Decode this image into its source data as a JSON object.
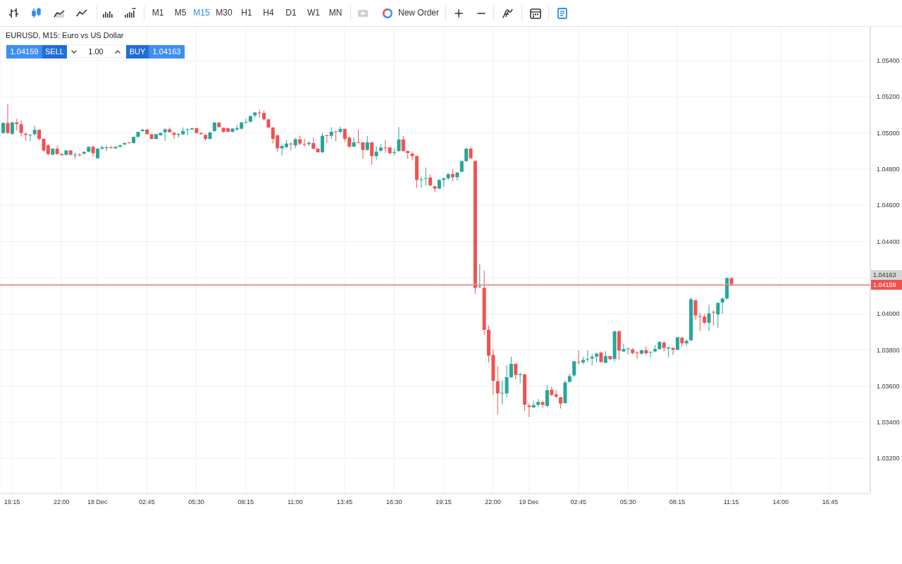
{
  "chart_data": {
    "type": "candlestick",
    "title": "EURUSD, M15: Euro vs US Dollar",
    "annotations": [
      "M1",
      "M5",
      "M15",
      "M30",
      "H1",
      "H4",
      "D1",
      "W1",
      "MN",
      "New Order",
      "1.04159",
      "SELL",
      "1.00",
      "BUY",
      "1.04163"
    ],
    "x": [
      "--12-17T18:45",
      "--12-17T19:00",
      "--12-17T19:15",
      "--12-17T19:30",
      "--12-17T19:45",
      "--12-17T20:00",
      "--12-17T20:15",
      "--12-17T20:30",
      "--12-17T20:45",
      "--12-17T21:00",
      "--12-17T21:15",
      "--12-17T21:30",
      "--12-17T21:45",
      "--12-17T22:00",
      "--12-17T22:15",
      "--12-17T22:30",
      "--12-17T22:45",
      "--12-17T23:00",
      "--12-17T23:15",
      "--12-17T23:30",
      "--12-17T23:45",
      "--12-18T00:00",
      "--12-18T00:15",
      "--12-18T00:30",
      "--12-18T00:45",
      "--12-18T01:00",
      "--12-18T01:15",
      "--12-18T01:30",
      "--12-18T01:45",
      "--12-18T02:00",
      "--12-18T02:15",
      "--12-18T02:30",
      "--12-18T02:45",
      "--12-18T03:00",
      "--12-18T03:15",
      "--12-18T03:30",
      "--12-18T03:45",
      "--12-18T04:00",
      "--12-18T04:15",
      "--12-18T04:30",
      "--12-18T04:45",
      "--12-18T05:00",
      "--12-18T05:15",
      "--12-18T05:30",
      "--12-18T05:45",
      "--12-18T06:00",
      "--12-18T06:15",
      "--12-18T06:30",
      "--12-18T06:45",
      "--12-18T07:00",
      "--12-18T07:15",
      "--12-18T07:30",
      "--12-18T07:45",
      "--12-18T08:00",
      "--12-18T08:15",
      "--12-18T08:30",
      "--12-18T08:45",
      "--12-18T09:00",
      "--12-18T09:15",
      "--12-18T09:30",
      "--12-18T09:45",
      "--12-18T10:00",
      "--12-18T10:15",
      "--12-18T10:30",
      "--12-18T10:45",
      "--12-18T11:00",
      "--12-18T11:15",
      "--12-18T11:30",
      "--12-18T11:45",
      "--12-18T12:00",
      "--12-18T12:15",
      "--12-18T12:30",
      "--12-18T12:45",
      "--12-18T13:00",
      "--12-18T13:15",
      "--12-18T13:30",
      "--12-18T13:45",
      "--12-18T14:00",
      "--12-18T14:15",
      "--12-18T14:30",
      "--12-18T14:45",
      "--12-18T15:00",
      "--12-18T15:15",
      "--12-18T15:30",
      "--12-18T15:45",
      "--12-18T16:00",
      "--12-18T16:15",
      "--12-18T16:30",
      "--12-18T16:45",
      "--12-18T17:00",
      "--12-18T17:15",
      "--12-18T17:30",
      "--12-18T17:45",
      "--12-18T18:00",
      "--12-18T18:15",
      "--12-18T18:30",
      "--12-18T18:45",
      "--12-18T19:00",
      "--12-18T19:15",
      "--12-18T19:30",
      "--12-18T19:45",
      "--12-18T20:00",
      "--12-18T20:15",
      "--12-18T20:30",
      "--12-18T20:45",
      "--12-18T21:00",
      "--12-18T21:15",
      "--12-18T21:30",
      "--12-18T21:45",
      "--12-18T22:00",
      "--12-18T22:15",
      "--12-18T22:30",
      "--12-18T22:45",
      "--12-18T23:00",
      "--12-18T23:15",
      "--12-18T23:30",
      "--12-18T23:45",
      "--12-19T00:00",
      "--12-19T00:15",
      "--12-19T00:30",
      "--12-19T00:45",
      "--12-19T01:00",
      "--12-19T01:15",
      "--12-19T01:30",
      "--12-19T01:45",
      "--12-19T02:00",
      "--12-19T02:15",
      "--12-19T02:30",
      "--12-19T02:45",
      "--12-19T03:00",
      "--12-19T03:15",
      "--12-19T03:30",
      "--12-19T03:45",
      "--12-19T04:00",
      "--12-19T04:15",
      "--12-19T04:30",
      "--12-19T04:45",
      "--12-19T05:00",
      "--12-19T05:15",
      "--12-19T05:30",
      "--12-19T05:45",
      "--12-19T06:00",
      "--12-19T06:15",
      "--12-19T06:30",
      "--12-19T06:45",
      "--12-19T07:00",
      "--12-19T07:15",
      "--12-19T07:30",
      "--12-19T07:45",
      "--12-19T08:00",
      "--12-19T08:15",
      "--12-19T08:30",
      "--12-19T08:45",
      "--12-19T09:00",
      "--12-19T09:15",
      "--12-19T09:30",
      "--12-19T09:45",
      "--12-19T10:00",
      "--12-19T10:15",
      "--12-19T10:30",
      "--12-19T10:45",
      "--12-19T11:00",
      "--12-19T11:15"
    ],
    "ohlc": [
      [
        1.05,
        1.05058,
        1.04995,
        1.05055
      ],
      [
        1.05055,
        1.0516,
        1.04993,
        1.05
      ],
      [
        1.04995,
        1.05062,
        1.0499,
        1.05058
      ],
      [
        1.05058,
        1.05078,
        1.05014,
        1.05049
      ],
      [
        1.05048,
        1.0507,
        1.0498,
        1.05
      ],
      [
        1.04995,
        1.05003,
        1.04957,
        1.04989
      ],
      [
        1.04988,
        1.04993,
        1.04954,
        1.0499
      ],
      [
        1.04993,
        1.05039,
        1.04987,
        1.05017
      ],
      [
        1.05017,
        1.0502,
        1.04957,
        1.04967
      ],
      [
        1.04967,
        1.0497,
        1.04896,
        1.04903
      ],
      [
        1.04931,
        1.0494,
        1.04876,
        1.04883
      ],
      [
        1.0488,
        1.04915,
        1.04876,
        1.04913
      ],
      [
        1.04913,
        1.0493,
        1.0488,
        1.04883
      ],
      [
        1.04883,
        1.04888,
        1.04876,
        1.04877
      ],
      [
        1.04879,
        1.04905,
        1.04876,
        1.04903
      ],
      [
        1.04903,
        1.04905,
        1.04876,
        1.04879
      ],
      [
        1.04878,
        1.04891,
        1.04857,
        1.0488
      ],
      [
        1.0488,
        1.04889,
        1.0487,
        1.04877
      ],
      [
        1.04885,
        1.04898,
        1.04883,
        1.04895
      ],
      [
        1.04896,
        1.04925,
        1.04893,
        1.04923
      ],
      [
        1.04923,
        1.0493,
        1.0487,
        1.04888
      ],
      [
        1.0486,
        1.04915,
        1.04857,
        1.04913
      ],
      [
        1.04913,
        1.04931,
        1.04908,
        1.0492
      ],
      [
        1.04918,
        1.04929,
        1.049,
        1.0492
      ],
      [
        1.0492,
        1.04929,
        1.04913,
        1.04918
      ],
      [
        1.04915,
        1.04926,
        1.0491,
        1.04923
      ],
      [
        1.04923,
        1.04934,
        1.0492,
        1.04931
      ],
      [
        1.04936,
        1.04946,
        1.04934,
        1.04944
      ],
      [
        1.04947,
        1.0495,
        1.04942,
        1.04944
      ],
      [
        1.04944,
        1.0498,
        1.04942,
        1.04978
      ],
      [
        1.04978,
        1.05008,
        1.04975,
        1.05006
      ],
      [
        1.0501,
        1.05022,
        1.05006,
        1.05018
      ],
      [
        1.05018,
        1.05023,
        1.0499,
        1.04993
      ],
      [
        1.04993,
        1.04996,
        1.04965,
        1.04967
      ],
      [
        1.04967,
        1.04996,
        1.04964,
        1.04993
      ],
      [
        1.04987,
        1.05003,
        1.04985,
        1.05
      ],
      [
        1.05004,
        1.05026,
        1.04957,
        1.0502
      ],
      [
        1.0502,
        1.0503,
        1.05002,
        1.05004
      ],
      [
        1.05,
        1.05006,
        1.04967,
        1.04989
      ],
      [
        1.04989,
        1.05,
        1.04974,
        1.04994
      ],
      [
        1.04993,
        1.0503,
        1.04987,
        1.0501
      ],
      [
        1.05016,
        1.05026,
        1.04987,
        1.0502
      ],
      [
        1.0502,
        1.0503,
        1.05016,
        1.05026
      ],
      [
        1.05026,
        1.05029,
        1.04997,
        1.05
      ],
      [
        1.05,
        1.05003,
        1.0499,
        1.04993
      ],
      [
        1.04989,
        1.04994,
        1.04957,
        1.04967
      ],
      [
        1.04967,
        1.05006,
        1.04964,
        1.05003
      ],
      [
        1.0501,
        1.0506,
        1.05008,
        1.05057
      ],
      [
        1.05057,
        1.0506,
        1.0503,
        1.05032
      ],
      [
        1.05028,
        1.0503,
        1.05,
        1.05006
      ],
      [
        1.05026,
        1.0503,
        1.05004,
        1.05006
      ],
      [
        1.05006,
        1.05026,
        1.05004,
        1.05024
      ],
      [
        1.05019,
        1.05045,
        1.05013,
        1.05026
      ],
      [
        1.05023,
        1.0506,
        1.0502,
        1.05058
      ],
      [
        1.05057,
        1.05078,
        1.05052,
        1.0506
      ],
      [
        1.05062,
        1.05097,
        1.05058,
        1.05093
      ],
      [
        1.05097,
        1.05117,
        1.05084,
        1.05113
      ],
      [
        1.05113,
        1.0513,
        1.05084,
        1.0511
      ],
      [
        1.0511,
        1.05123,
        1.05072,
        1.05075
      ],
      [
        1.05075,
        1.05078,
        1.05028,
        1.0503
      ],
      [
        1.0503,
        1.05032,
        1.04941,
        1.04967
      ],
      [
        1.04987,
        1.0499,
        1.04896,
        1.04915
      ],
      [
        1.04915,
        1.04935,
        1.04876,
        1.04928
      ],
      [
        1.04922,
        1.04961,
        1.04915,
        1.04941
      ],
      [
        1.04941,
        1.04948,
        1.04902,
        1.04939
      ],
      [
        1.04931,
        1.04974,
        1.04915,
        1.04965
      ],
      [
        1.04965,
        1.04983,
        1.04931,
        1.04941
      ],
      [
        1.04939,
        1.0497,
        1.04922,
        1.04937
      ],
      [
        1.04938,
        1.04954,
        1.04928,
        1.04945
      ],
      [
        1.04944,
        1.04974,
        1.04909,
        1.04913
      ],
      [
        1.04913,
        1.04915,
        1.04891,
        1.04893
      ],
      [
        1.04893,
        1.05,
        1.04889,
        1.04984
      ],
      [
        1.04987,
        1.04991,
        1.04944,
        1.04985
      ],
      [
        1.04984,
        1.05032,
        1.04967,
        1.05006
      ],
      [
        1.05009,
        1.0501,
        1.04954,
        1.05006
      ],
      [
        1.05006,
        1.05035,
        1.05,
        1.05022
      ],
      [
        1.05022,
        1.05024,
        1.0495,
        1.04967
      ],
      [
        1.04974,
        1.0498,
        1.04919,
        1.04924
      ],
      [
        1.04924,
        1.04974,
        1.04922,
        1.04948
      ],
      [
        1.04948,
        1.05019,
        1.04944,
        1.04946
      ],
      [
        1.04948,
        1.0495,
        1.04857,
        1.04906
      ],
      [
        1.04906,
        1.04984,
        1.04902,
        1.04948
      ],
      [
        1.04948,
        1.0495,
        1.04824,
        1.04872
      ],
      [
        1.04872,
        1.04928,
        1.04853,
        1.04896
      ],
      [
        1.04902,
        1.04939,
        1.04896,
        1.04919
      ],
      [
        1.04919,
        1.04961,
        1.04889,
        1.04918
      ],
      [
        1.04919,
        1.04922,
        1.04885,
        1.04887
      ],
      [
        1.04889,
        1.04915,
        1.04876,
        1.04893
      ],
      [
        1.049,
        1.05032,
        1.04896,
        1.04964
      ],
      [
        1.04964,
        1.04984,
        1.04896,
        1.049
      ],
      [
        1.049,
        1.04902,
        1.04857,
        1.04889
      ],
      [
        1.04885,
        1.04896,
        1.04848,
        1.04872
      ],
      [
        1.04872,
        1.04875,
        1.04697,
        1.0474
      ],
      [
        1.0474,
        1.04759,
        1.04697,
        1.04743
      ],
      [
        1.04747,
        1.04809,
        1.04707,
        1.0475
      ],
      [
        1.04753,
        1.0477,
        1.04707,
        1.0471
      ],
      [
        1.04705,
        1.0471,
        1.04675,
        1.04692
      ],
      [
        1.04692,
        1.04745,
        1.0469,
        1.0474
      ],
      [
        1.0474,
        1.04752,
        1.04701,
        1.04749
      ],
      [
        1.04749,
        1.04779,
        1.0474,
        1.04772
      ],
      [
        1.04772,
        1.04801,
        1.04733,
        1.04755
      ],
      [
        1.04755,
        1.04783,
        1.04736,
        1.04781
      ],
      [
        1.04785,
        1.04848,
        1.04783,
        1.04844
      ],
      [
        1.04844,
        1.04918,
        1.04842,
        1.04913
      ],
      [
        1.04913,
        1.04922,
        1.04857,
        1.0486
      ],
      [
        1.04845,
        1.04849,
        1.0411,
        1.04143
      ],
      [
        1.04148,
        1.04273,
        1.04143,
        1.04151
      ],
      [
        1.04143,
        1.04238,
        1.03883,
        1.03911
      ],
      [
        1.03911,
        1.03935,
        1.03731,
        1.03768
      ],
      [
        1.03772,
        1.03805,
        1.03551,
        1.03629
      ],
      [
        1.03627,
        1.0371,
        1.03443,
        1.0356
      ],
      [
        1.0356,
        1.03632,
        1.03499,
        1.03562
      ],
      [
        1.0356,
        1.03716,
        1.03538,
        1.03649
      ],
      [
        1.03649,
        1.03762,
        1.03645,
        1.03723
      ],
      [
        1.03723,
        1.03727,
        1.03636,
        1.03662
      ],
      [
        1.03662,
        1.03675,
        1.03616,
        1.03665
      ],
      [
        1.03665,
        1.03667,
        1.03463,
        1.03497
      ],
      [
        1.03492,
        1.03502,
        1.03428,
        1.03484
      ],
      [
        1.03482,
        1.03519,
        1.0348,
        1.03495
      ],
      [
        1.03497,
        1.03528,
        1.03484,
        1.03512
      ],
      [
        1.03512,
        1.03514,
        1.0348,
        1.03497
      ],
      [
        1.0349,
        1.03606,
        1.03484,
        1.03577
      ],
      [
        1.0358,
        1.03597,
        1.03545,
        1.03551
      ],
      [
        1.03554,
        1.03577,
        1.03536,
        1.03541
      ],
      [
        1.03538,
        1.0354,
        1.03476,
        1.03503
      ],
      [
        1.03506,
        1.03632,
        1.03503,
        1.0362
      ],
      [
        1.03623,
        1.03668,
        1.0362,
        1.03655
      ],
      [
        1.03659,
        1.0374,
        1.03651,
        1.03737
      ],
      [
        1.03733,
        1.03798,
        1.0372,
        1.03731
      ],
      [
        1.03731,
        1.03762,
        1.0372,
        1.03744
      ],
      [
        1.03749,
        1.03798,
        1.03733,
        1.0375
      ],
      [
        1.03753,
        1.03779,
        1.03714,
        1.03762
      ],
      [
        1.03763,
        1.03785,
        1.03731,
        1.03779
      ],
      [
        1.03785,
        1.03792,
        1.03731,
        1.03733
      ],
      [
        1.03729,
        1.03792,
        1.03727,
        1.03766
      ],
      [
        1.03766,
        1.03768,
        1.03744,
        1.03749
      ],
      [
        1.0375,
        1.03905,
        1.03736,
        1.03903
      ],
      [
        1.03903,
        1.03909,
        1.03746,
        1.03796
      ],
      [
        1.03792,
        1.03835,
        1.03788,
        1.03805
      ],
      [
        1.03804,
        1.03811,
        1.03775,
        1.03808
      ],
      [
        1.03802,
        1.03811,
        1.03775,
        1.03783
      ],
      [
        1.03785,
        1.03792,
        1.03749,
        1.03783
      ],
      [
        1.03779,
        1.03802,
        1.03775,
        1.03798
      ],
      [
        1.03798,
        1.0382,
        1.03772,
        1.03781
      ],
      [
        1.03786,
        1.03792,
        1.03759,
        1.03789
      ],
      [
        1.03792,
        1.03828,
        1.03788,
        1.03805
      ],
      [
        1.03805,
        1.03848,
        1.03801,
        1.03844
      ],
      [
        1.0384,
        1.0385,
        1.03792,
        1.03811
      ],
      [
        1.03808,
        1.03818,
        1.03759,
        1.03814
      ],
      [
        1.03811,
        1.03814,
        1.03772,
        1.03801
      ],
      [
        1.03801,
        1.03872,
        1.03799,
        1.0387
      ],
      [
        1.03867,
        1.03873,
        1.0382,
        1.03837
      ],
      [
        1.03837,
        1.03857,
        1.0382,
        1.0385
      ],
      [
        1.03853,
        1.04091,
        1.0385,
        1.0408
      ],
      [
        1.04075,
        1.04077,
        1.03967,
        1.0399
      ],
      [
        1.03987,
        1.04006,
        1.03905,
        1.03985
      ],
      [
        1.03984,
        1.04,
        1.03944,
        1.0395
      ],
      [
        1.0395,
        1.04049,
        1.03905,
        1.04002
      ],
      [
        1.0401,
        1.04019,
        1.03935,
        1.04006
      ],
      [
        1.03996,
        1.04064,
        1.03922,
        1.0406
      ],
      [
        1.04062,
        1.04091,
        1.04,
        1.04084
      ],
      [
        1.04084,
        1.04201,
        1.0408,
        1.04197
      ],
      [
        1.04197,
        1.04199,
        1.04152,
        1.04159
      ]
    ],
    "colors": [
      "#26a69a",
      "#ef5350",
      "#26a69a",
      "#ef5350",
      "#ef5350",
      "#ef5350",
      "#26a69a",
      "#26a69a",
      "#ef5350",
      "#ef5350",
      "#ef5350",
      "#26a69a",
      "#ef5350",
      "#ef5350",
      "#26a69a",
      "#ef5350",
      "#26a69a",
      "#ef5350",
      "#26a69a",
      "#26a69a",
      "#ef5350",
      "#26a69a",
      "#26a69a",
      "#26a69a",
      "#ef5350",
      "#26a69a",
      "#26a69a",
      "#26a69a",
      "#ef5350",
      "#26a69a",
      "#26a69a",
      "#26a69a",
      "#ef5350",
      "#ef5350",
      "#26a69a",
      "#26a69a",
      "#26a69a",
      "#ef5350",
      "#ef5350",
      "#26a69a",
      "#26a69a",
      "#26a69a",
      "#26a69a",
      "#ef5350",
      "#ef5350",
      "#ef5350",
      "#26a69a",
      "#26a69a",
      "#ef5350",
      "#ef5350",
      "#ef5350",
      "#26a69a",
      "#26a69a",
      "#26a69a",
      "#26a69a",
      "#26a69a",
      "#26a69a",
      "#ef5350",
      "#ef5350",
      "#ef5350",
      "#ef5350",
      "#ef5350",
      "#26a69a",
      "#26a69a",
      "#ef5350",
      "#26a69a",
      "#ef5350",
      "#ef5350",
      "#26a69a",
      "#ef5350",
      "#ef5350",
      "#26a69a",
      "#ef5350",
      "#26a69a",
      "#ef5350",
      "#26a69a",
      "#ef5350",
      "#ef5350",
      "#26a69a",
      "#ef5350",
      "#ef5350",
      "#26a69a",
      "#ef5350",
      "#26a69a",
      "#26a69a",
      "#ef5350",
      "#ef5350",
      "#26a69a",
      "#26a69a",
      "#ef5350",
      "#ef5350",
      "#ef5350",
      "#ef5350",
      "#26a69a",
      "#26a69a",
      "#ef5350",
      "#ef5350",
      "#26a69a",
      "#26a69a",
      "#26a69a",
      "#ef5350",
      "#26a69a",
      "#26a69a",
      "#26a69a",
      "#ef5350",
      "#ef5350",
      "#26a69a",
      "#ef5350",
      "#ef5350",
      "#ef5350",
      "#ef5350",
      "#26a69a",
      "#26a69a",
      "#26a69a",
      "#ef5350",
      "#26a69a",
      "#ef5350",
      "#ef5350",
      "#26a69a",
      "#26a69a",
      "#ef5350",
      "#26a69a",
      "#ef5350",
      "#ef5350",
      "#ef5350",
      "#26a69a",
      "#26a69a",
      "#26a69a",
      "#ef5350",
      "#26a69a",
      "#26a69a",
      "#26a69a",
      "#26a69a",
      "#ef5350",
      "#26a69a",
      "#ef5350",
      "#26a69a",
      "#ef5350",
      "#26a69a",
      "#26a69a",
      "#ef5350",
      "#ef5350",
      "#26a69a",
      "#ef5350",
      "#26a69a",
      "#26a69a",
      "#26a69a",
      "#ef5350",
      "#26a69a",
      "#ef5350",
      "#26a69a",
      "#ef5350",
      "#26a69a",
      "#26a69a",
      "#ef5350",
      "#ef5350",
      "#ef5350",
      "#26a69a",
      "#ef5350",
      "#26a69a",
      "#26a69a",
      "#26a69a",
      "#ef5350"
    ],
    "xlim": [
      "--12-17T18:35",
      "--12-19T18:59"
    ],
    "xticks": [
      {
        "value": "--12-17T19:15",
        "label": "19:15"
      },
      {
        "value": "--12-17T22:00",
        "label": "22:00"
      },
      {
        "value": "--12-18",
        "label": "18 Dec"
      },
      {
        "value": "--12-18T02:45",
        "label": "02:45"
      },
      {
        "value": "--12-18T05:30",
        "label": "05:30"
      },
      {
        "value": "--12-18T08:15",
        "label": "08:15"
      },
      {
        "value": "--12-18T11:00",
        "label": "11:00"
      },
      {
        "value": "--12-18T13:45",
        "label": "13:45"
      },
      {
        "value": "--12-18T16:30",
        "label": "16:30"
      },
      {
        "value": "--12-18T19:15",
        "label": "19:15"
      },
      {
        "value": "--12-18T22:00",
        "label": "22:00"
      },
      {
        "value": "--12-19",
        "label": "19 Dec"
      },
      {
        "value": "--12-19T02:45",
        "label": "02:45"
      },
      {
        "value": "--12-19T05:30",
        "label": "05:30"
      },
      {
        "value": "--12-19T08:15",
        "label": "08:15"
      },
      {
        "value": "--12-19T11:15",
        "label": "11:15"
      },
      {
        "value": "--12-19T14:00",
        "label": "14:00"
      },
      {
        "value": "--12-19T16:45",
        "label": "16:45"
      }
    ],
    "ylim": [
      1.03006,
      1.05587
    ],
    "yticks": [
      {
        "value": 1.032,
        "label": "1.03200"
      },
      {
        "value": 1.034,
        "label": "1.03400"
      },
      {
        "value": 1.036,
        "label": "1.03600"
      },
      {
        "value": 1.038,
        "label": "1.03800"
      },
      {
        "value": 1.04,
        "label": "1.04000"
      },
      {
        "value": 1.042,
        "label": null
      },
      {
        "value": 1.044,
        "label": "1.04400"
      },
      {
        "value": 1.046,
        "label": "1.04600"
      },
      {
        "value": 1.048,
        "label": "1.04800"
      },
      {
        "value": 1.05,
        "label": "1.05000"
      },
      {
        "value": 1.052,
        "label": "1.05200"
      },
      {
        "value": 1.054,
        "label": "1.05400"
      }
    ],
    "ref_lines": [
      {
        "axis": "y",
        "value": 1.04163,
        "label": "1.04163",
        "color": "#d6d6d6"
      },
      {
        "axis": "y",
        "value": 1.04159,
        "label": "1.04159",
        "color": "#ef5350"
      }
    ],
    "grid": true
  }
}
